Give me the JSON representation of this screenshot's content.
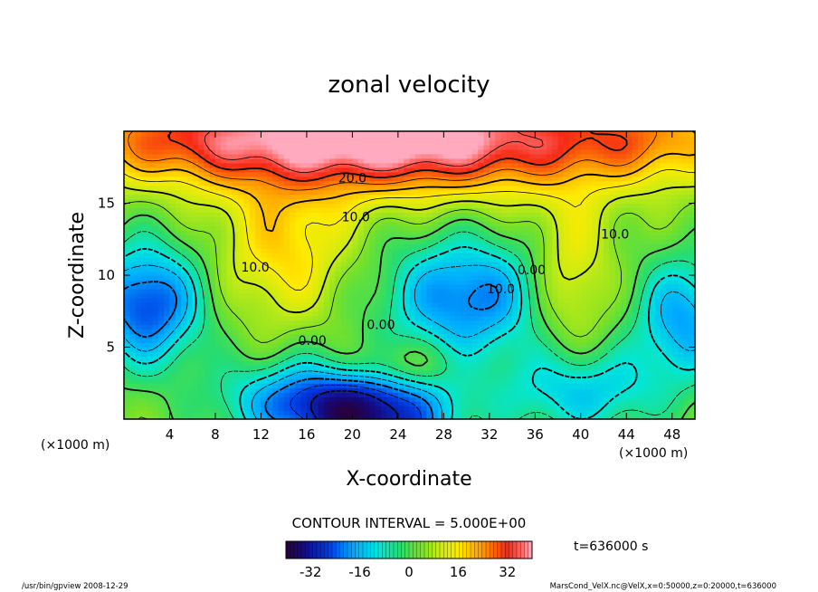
{
  "chart_data": {
    "type": "heatmap",
    "title": "zonal velocity",
    "xlabel": "X-coordinate",
    "ylabel": "Z-coordinate",
    "x_unit_label": "(×1000 m)",
    "y_unit_label": "(×1000 m)",
    "xlim": [
      0,
      50
    ],
    "ylim": [
      0,
      20
    ],
    "x_ticks": [
      4,
      8,
      12,
      16,
      20,
      24,
      28,
      32,
      36,
      40,
      44,
      48
    ],
    "y_ticks": [
      5,
      10,
      15
    ],
    "contour_interval_label": "CONTOUR INTERVAL = 5.000E+00",
    "time_label": "t=636000 s",
    "colorbar": {
      "min": -40,
      "max": 40,
      "ticks": [
        -32,
        -16,
        0,
        16,
        32
      ]
    },
    "contour_labels": [
      {
        "text": "20.0",
        "x": 20.0,
        "z": 16.7
      },
      {
        "text": "10.0",
        "x": 20.3,
        "z": 14.0
      },
      {
        "text": "10.0",
        "x": 43.0,
        "z": 12.8
      },
      {
        "text": "10.0",
        "x": 11.5,
        "z": 10.5
      },
      {
        "text": "0.00",
        "x": 35.7,
        "z": 10.3
      },
      {
        "text": "10.0",
        "x": 33.0,
        "z": 9.0
      },
      {
        "text": "0.00",
        "x": 22.5,
        "z": 6.5
      },
      {
        "text": "0.00",
        "x": 16.5,
        "z": 5.4
      }
    ],
    "velocity_centers": [
      {
        "x": 25,
        "z": 19.5,
        "u": 40,
        "sx": 12,
        "sz": 2.6
      },
      {
        "x": 5,
        "z": 19.5,
        "u": 18,
        "sx": 9,
        "sz": 2.2
      },
      {
        "x": 46,
        "z": 19.5,
        "u": 14,
        "sx": 6,
        "sz": 2.2
      },
      {
        "x": 14,
        "z": 12,
        "u": 14,
        "sx": 4,
        "sz": 3.5
      },
      {
        "x": 39,
        "z": 10,
        "u": 12,
        "sx": 2.5,
        "sz": 4
      },
      {
        "x": 24,
        "z": 3.8,
        "u": 10,
        "sx": 3.5,
        "sz": 1.2
      },
      {
        "x": 2,
        "z": 8,
        "u": -30,
        "sx": 3.5,
        "sz": 3
      },
      {
        "x": 30,
        "z": 8.5,
        "u": -26,
        "sx": 5,
        "sz": 3
      },
      {
        "x": 22,
        "z": 0,
        "u": -34,
        "sx": 5,
        "sz": 2.5
      },
      {
        "x": 15,
        "z": 1.3,
        "u": -20,
        "sx": 5,
        "sz": 2
      },
      {
        "x": 40,
        "z": 2,
        "u": -18,
        "sx": 5,
        "sz": 2.2
      },
      {
        "x": 49,
        "z": 7,
        "u": -22,
        "sx": 3,
        "sz": 3
      }
    ],
    "background_u": 4
  },
  "footer": {
    "program": "/usr/bin/gpview   2008-12-29",
    "source": "MarsCond_VelX.nc@VelX,x=0:50000,z=0:20000,t=636000"
  }
}
